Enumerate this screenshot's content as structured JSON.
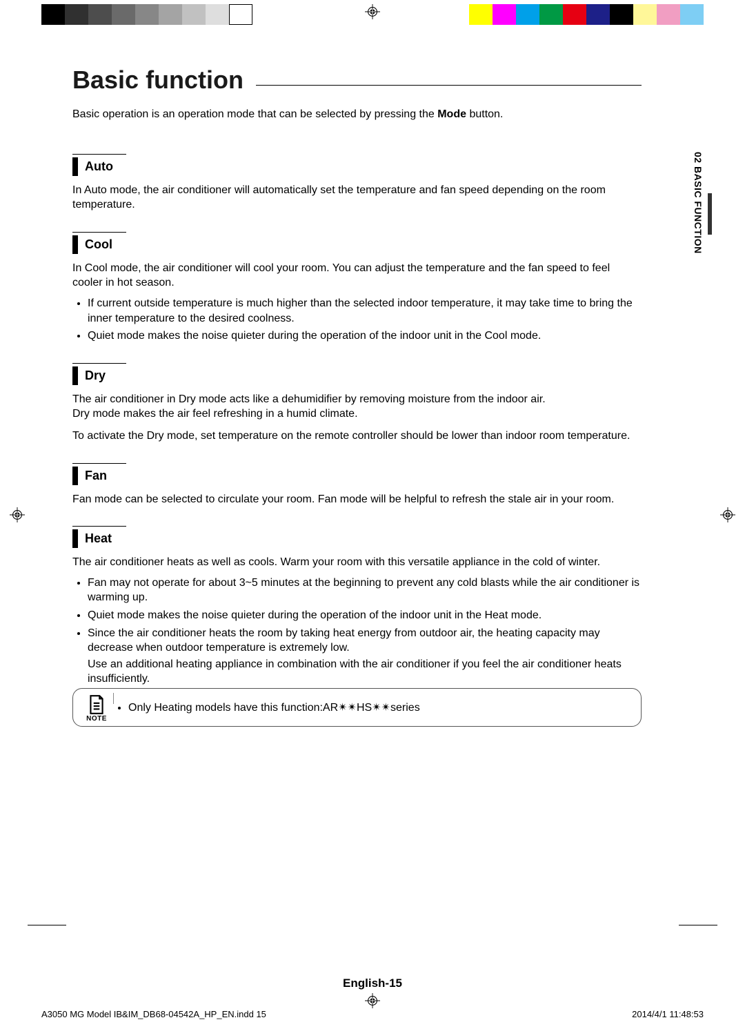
{
  "color_bars": {
    "left_grays": [
      "#000000",
      "#303030",
      "#4d4d4d",
      "#6a6a6a",
      "#878787",
      "#a4a4a4",
      "#c1c1c1",
      "#dedede",
      "#ffffff"
    ],
    "right_colors": [
      "#ffff00",
      "#ff00ff",
      "#00a0e9",
      "#009944",
      "#e60012",
      "#1d2088",
      "#000000",
      "#fff799",
      "#f19ec2",
      "#7ecef4"
    ]
  },
  "side_tab": {
    "label": "02  BASIC FUNCTION"
  },
  "title": "Basic function",
  "intro": {
    "pre": "Basic operation is an operation mode that can be selected by pressing the ",
    "bold": "Mode",
    "post": " button."
  },
  "sections": {
    "auto": {
      "heading": "Auto",
      "text": "In Auto mode, the air conditioner will automatically set the temperature and fan speed depending on the room temperature."
    },
    "cool": {
      "heading": "Cool",
      "text": "In Cool mode, the air conditioner will cool your room. You can adjust the temperature and the fan speed to feel cooler in hot season.",
      "bullets": [
        "If current outside temperature is much higher than the selected indoor temperature, it may take time to bring the inner temperature to the desired coolness.",
        "Quiet mode makes the noise quieter during the operation of the indoor unit in the Cool mode."
      ]
    },
    "dry": {
      "heading": "Dry",
      "text1": "The air conditioner in Dry mode acts like a dehumidifier by removing moisture from the indoor air.",
      "text2": "Dry mode makes the air feel refreshing in a humid climate.",
      "text3": "To activate the Dry mode, set temperature on the remote controller should be lower than indoor room temperature."
    },
    "fan": {
      "heading": "Fan",
      "text": "Fan mode can be selected to circulate your room. Fan mode will be helpful to refresh the stale air in your room."
    },
    "heat": {
      "heading": "Heat",
      "text": "The air conditioner heats as well as cools. Warm your room with this versatile appliance in the cold of winter.",
      "bullets": [
        {
          "main": "Fan may not operate for about 3~5 minutes at the beginning to prevent any cold blasts while the air conditioner is warming up."
        },
        {
          "main": "Quiet mode makes the noise quieter during the operation of  the indoor unit in the Heat mode."
        },
        {
          "main": "Since the air conditioner heats the room by taking heat energy from outdoor air, the heating capacity may decrease when outdoor temperature is extremely low.",
          "extra": "Use an additional heating appliance in combination with the air conditioner if you feel the air conditioner heats insufficiently."
        }
      ]
    }
  },
  "note": {
    "label": "NOTE",
    "text": "Only Heating models have this function:AR✴✴HS✴✴series"
  },
  "footer": {
    "page_label": "English-15",
    "print_left": "A3050 MG Model IB&IM_DB68-04542A_HP_EN.indd   15",
    "print_right": "2014/4/1   11:48:53"
  }
}
